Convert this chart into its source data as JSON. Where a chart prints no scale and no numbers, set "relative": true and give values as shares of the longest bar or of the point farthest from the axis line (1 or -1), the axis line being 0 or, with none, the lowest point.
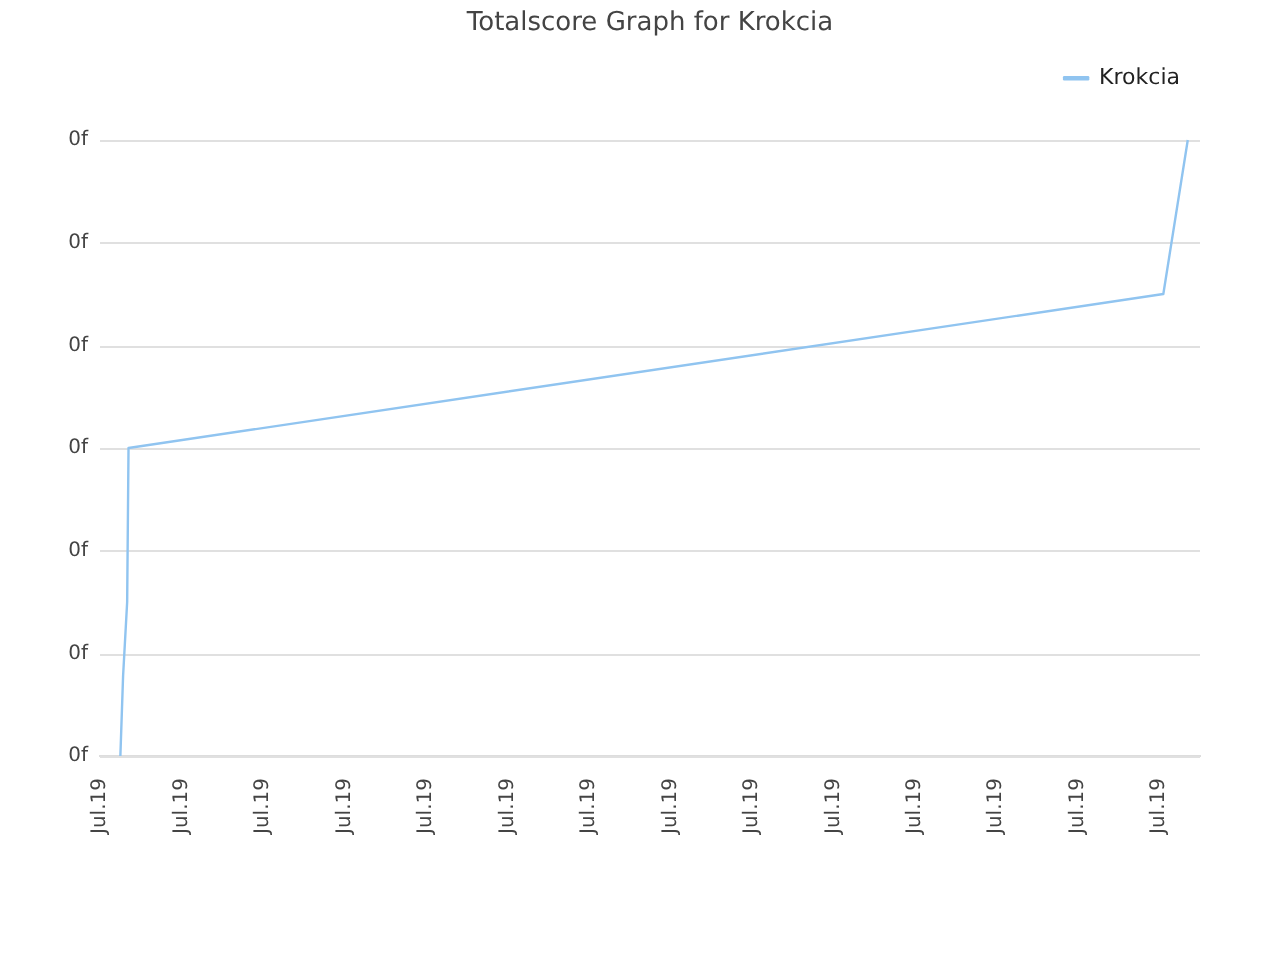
{
  "chart_data": {
    "type": "line",
    "title": "Totalscore Graph for Krokcia",
    "legend": "top right",
    "grid": "y",
    "marker": "none",
    "relative": true,
    "annotations": [
      "0f",
      "0f",
      "0f",
      "0f",
      "0f",
      "0f",
      "0f"
    ],
    "xlim": [
      "--07-19T00:00",
      "--07-19T13:30"
    ],
    "xticks": [
      {
        "value": "--07-19T00:00",
        "label": "Jul.19"
      },
      {
        "value": "--07-19T01:00",
        "label": "Jul.19"
      },
      {
        "value": "--07-19T02:00",
        "label": "Jul.19"
      },
      {
        "value": "--07-19T03:00",
        "label": "Jul.19"
      },
      {
        "value": "--07-19T04:00",
        "label": "Jul.19"
      },
      {
        "value": "--07-19T05:00",
        "label": "Jul.19"
      },
      {
        "value": "--07-19T06:00",
        "label": "Jul.19"
      },
      {
        "value": "--07-19T07:00",
        "label": "Jul.19"
      },
      {
        "value": "--07-19T08:00",
        "label": "Jul.19"
      },
      {
        "value": "--07-19T09:00",
        "label": "Jul.19"
      },
      {
        "value": "--07-19T10:00",
        "label": "Jul.19"
      },
      {
        "value": "--07-19T11:00",
        "label": "Jul.19"
      },
      {
        "value": "--07-19T12:00",
        "label": "Jul.19"
      },
      {
        "value": "--07-19T13:00",
        "label": "Jul.19"
      }
    ],
    "series": [
      {
        "name": "Krokcia",
        "color": "#90c4f0",
        "x": [
          "--07-19T00:15",
          "--07-19T00:17",
          "--07-19T00:20",
          "--07-19T00:21",
          "--07-19T13:03",
          "--07-19T13:21"
        ],
        "values": [
          0,
          0.13,
          0.25,
          0.5,
          0.75,
          1
        ]
      }
    ]
  }
}
